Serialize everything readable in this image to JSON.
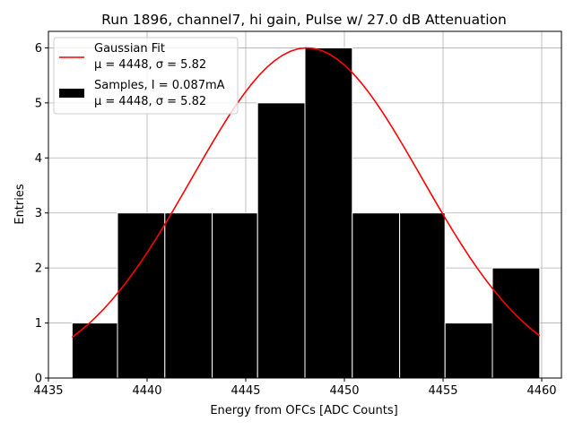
{
  "chart_data": {
    "type": "bar",
    "title": "Run 1896, channel7, hi gain, Pulse w/ 27.0 dB Attenuation",
    "xlabel": "Energy from OFCs [ADC Counts]",
    "ylabel": "Entries",
    "xlim": [
      4435,
      4461
    ],
    "ylim": [
      0,
      6.3
    ],
    "xticks": [
      4435,
      4440,
      4445,
      4450,
      4455,
      4460
    ],
    "yticks": [
      0,
      1,
      2,
      3,
      4,
      5,
      6
    ],
    "grid": true,
    "legend_position": "upper-left",
    "histogram": {
      "name": "Samples, I = 0.087mA",
      "stats": "μ = 4448, σ = 5.82",
      "color": "#000000",
      "bin_edges": [
        4436.2,
        4438.5,
        4440.9,
        4443.3,
        4445.6,
        4448.0,
        4450.4,
        4452.8,
        4455.1,
        4457.5,
        4459.9
      ],
      "counts": [
        1,
        3,
        3,
        3,
        5,
        6,
        3,
        3,
        1,
        2
      ]
    },
    "fit": {
      "name": "Gaussian Fit",
      "stats": "μ = 4448, σ = 5.82",
      "color": "#ff0000",
      "mu": 4448.1,
      "sigma": 5.82,
      "amplitude": 6.0,
      "x_range": [
        4436.2,
        4459.9
      ]
    }
  }
}
